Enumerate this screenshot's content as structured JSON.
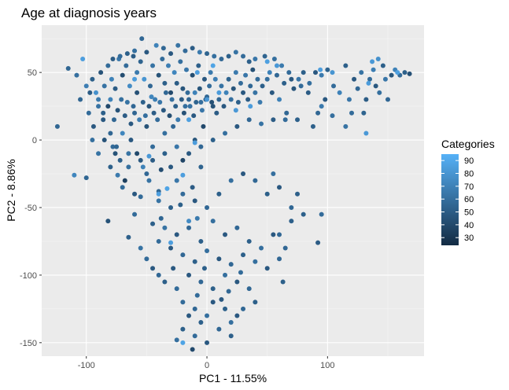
{
  "chart_data": {
    "type": "scatter",
    "title": "Age at diagnosis  years",
    "xlabel": "PC1 - 11.55%",
    "ylabel": "PC2 - 8.86%",
    "xlim": [
      -137,
      180
    ],
    "ylim": [
      -160,
      85
    ],
    "x_ticks": [
      -100,
      0,
      100
    ],
    "y_ticks": [
      -150,
      -100,
      -50,
      0,
      50
    ],
    "grid": true,
    "legend": {
      "title": "Categories",
      "position": "right",
      "ticks": [
        30,
        40,
        50,
        60,
        70,
        80,
        90
      ],
      "range": [
        24,
        95
      ],
      "color_low": "#132B43",
      "color_high": "#56B1F7"
    },
    "points": [
      [
        -124,
        10,
        55
      ],
      [
        -110,
        -26,
        72
      ],
      [
        -100,
        40,
        68
      ],
      [
        -103,
        60,
        85
      ],
      [
        -97,
        35,
        50
      ],
      [
        -90,
        25,
        62
      ],
      [
        -86,
        15,
        48
      ],
      [
        -80,
        5,
        55
      ],
      [
        -78,
        -5,
        58
      ],
      [
        -76,
        -10,
        45
      ],
      [
        -74,
        -26,
        66
      ],
      [
        -72,
        -15,
        52
      ],
      [
        -70,
        5,
        72
      ],
      [
        -68,
        -30,
        35
      ],
      [
        -65,
        -20,
        60
      ],
      [
        -63,
        0,
        48
      ],
      [
        -60,
        20,
        55
      ],
      [
        -58,
        -10,
        40
      ],
      [
        -55,
        -42,
        58
      ],
      [
        -53,
        -20,
        70
      ],
      [
        -50,
        10,
        45
      ],
      [
        -48,
        -30,
        62
      ],
      [
        -45,
        -15,
        50
      ],
      [
        -43,
        30,
        68
      ],
      [
        -40,
        -38,
        55
      ],
      [
        -38,
        -22,
        42
      ],
      [
        -35,
        5,
        60
      ],
      [
        -33,
        -36,
        88
      ],
      [
        -30,
        -20,
        48
      ],
      [
        -28,
        10,
        56
      ],
      [
        -25,
        -30,
        64
      ],
      [
        -22,
        -48,
        52
      ],
      [
        -20,
        -15,
        38
      ],
      [
        -18,
        25,
        60
      ],
      [
        -15,
        -60,
        75
      ],
      [
        -12,
        -35,
        50
      ],
      [
        -10,
        0,
        46
      ],
      [
        -8,
        -58,
        66
      ],
      [
        -5,
        -20,
        54
      ],
      [
        -3,
        10,
        40
      ],
      [
        -115,
        53,
        55
      ],
      [
        -108,
        48,
        60
      ],
      [
        -95,
        45,
        52
      ],
      [
        -92,
        35,
        78
      ],
      [
        -88,
        50,
        45
      ],
      [
        -85,
        40,
        62
      ],
      [
        -82,
        55,
        58
      ],
      [
        -79,
        45,
        70
      ],
      [
        -76,
        38,
        50
      ],
      [
        -73,
        60,
        65
      ],
      [
        -70,
        48,
        42
      ],
      [
        -67,
        55,
        58
      ],
      [
        -64,
        40,
        75
      ],
      [
        -61,
        62,
        50
      ],
      [
        -58,
        50,
        66
      ],
      [
        -55,
        58,
        54
      ],
      [
        -52,
        45,
        80
      ],
      [
        -50,
        65,
        48
      ],
      [
        -47,
        40,
        56
      ],
      [
        -45,
        55,
        62
      ],
      [
        -42,
        70,
        70
      ],
      [
        -40,
        48,
        45
      ],
      [
        -37,
        60,
        58
      ],
      [
        -35,
        42,
        52
      ],
      [
        -32,
        55,
        68
      ],
      [
        -30,
        35,
        40
      ],
      [
        -27,
        50,
        72
      ],
      [
        -25,
        42,
        50
      ],
      [
        -22,
        58,
        60
      ],
      [
        -20,
        38,
        46
      ],
      [
        -17,
        52,
        64
      ],
      [
        -15,
        30,
        56
      ],
      [
        -12,
        48,
        42
      ],
      [
        -10,
        35,
        70
      ],
      [
        -7,
        55,
        52
      ],
      [
        -5,
        28,
        60
      ],
      [
        -2,
        45,
        48
      ],
      [
        0,
        32,
        55
      ],
      [
        3,
        50,
        66
      ],
      [
        5,
        25,
        45
      ],
      [
        -98,
        20,
        58
      ],
      [
        -94,
        10,
        48
      ],
      [
        -90,
        30,
        66
      ],
      [
        -86,
        20,
        52
      ],
      [
        -82,
        25,
        40
      ],
      [
        -80,
        30,
        70
      ],
      [
        -77,
        15,
        55
      ],
      [
        -74,
        22,
        45
      ],
      [
        -71,
        30,
        60
      ],
      [
        -68,
        18,
        50
      ],
      [
        -66,
        28,
        62
      ],
      [
        -63,
        12,
        48
      ],
      [
        -61,
        25,
        56
      ],
      [
        -58,
        35,
        44
      ],
      [
        -56,
        15,
        68
      ],
      [
        -53,
        28,
        52
      ],
      [
        -51,
        18,
        60
      ],
      [
        -48,
        25,
        46
      ],
      [
        -46,
        32,
        72
      ],
      [
        -44,
        20,
        50
      ],
      [
        -41,
        15,
        58
      ],
      [
        -39,
        28,
        64
      ],
      [
        -36,
        22,
        48
      ],
      [
        -34,
        35,
        56
      ],
      [
        -31,
        18,
        42
      ],
      [
        -29,
        30,
        60
      ],
      [
        -26,
        25,
        52
      ],
      [
        -24,
        15,
        66
      ],
      [
        -21,
        30,
        50
      ],
      [
        -19,
        20,
        44
      ],
      [
        -16,
        35,
        58
      ],
      [
        -14,
        25,
        62
      ],
      [
        -11,
        18,
        48
      ],
      [
        -9,
        28,
        54
      ],
      [
        -6,
        38,
        46
      ],
      [
        -4,
        22,
        64
      ],
      [
        -1,
        30,
        52
      ],
      [
        2,
        40,
        58
      ],
      [
        4,
        28,
        44
      ],
      [
        7,
        45,
        68
      ],
      [
        8,
        20,
        50
      ],
      [
        10,
        30,
        56
      ],
      [
        12,
        40,
        62
      ],
      [
        14,
        25,
        48
      ],
      [
        16,
        35,
        70
      ],
      [
        18,
        45,
        54
      ],
      [
        20,
        30,
        60
      ],
      [
        22,
        38,
        46
      ],
      [
        24,
        50,
        66
      ],
      [
        26,
        28,
        52
      ],
      [
        28,
        42,
        58
      ],
      [
        30,
        35,
        48
      ],
      [
        32,
        48,
        64
      ],
      [
        34,
        30,
        50
      ],
      [
        36,
        40,
        56
      ],
      [
        38,
        52,
        44
      ],
      [
        40,
        35,
        62
      ],
      [
        42,
        45,
        58
      ],
      [
        44,
        28,
        66
      ],
      [
        46,
        40,
        52
      ],
      [
        50,
        45,
        60
      ],
      [
        54,
        35,
        48
      ],
      [
        58,
        48,
        56
      ],
      [
        60,
        30,
        70
      ],
      [
        64,
        42,
        52
      ],
      [
        68,
        50,
        58
      ],
      [
        72,
        38,
        46
      ],
      [
        76,
        45,
        64
      ],
      [
        80,
        50,
        52
      ],
      [
        85,
        42,
        60
      ],
      [
        90,
        50,
        48
      ],
      [
        95,
        48,
        66
      ],
      [
        100,
        52,
        54
      ],
      [
        105,
        40,
        58
      ],
      [
        110,
        35,
        70
      ],
      [
        115,
        55,
        52
      ],
      [
        118,
        30,
        64
      ],
      [
        122,
        45,
        48
      ],
      [
        125,
        38,
        56
      ],
      [
        128,
        50,
        62
      ],
      [
        132,
        30,
        50
      ],
      [
        135,
        45,
        58
      ],
      [
        138,
        52,
        68
      ],
      [
        140,
        40,
        48
      ],
      [
        143,
        35,
        60
      ],
      [
        146,
        55,
        52
      ],
      [
        148,
        45,
        64
      ],
      [
        150,
        30,
        56
      ],
      [
        153,
        48,
        46
      ],
      [
        156,
        52,
        70
      ],
      [
        160,
        48,
        58
      ],
      [
        164,
        50,
        52
      ],
      [
        168,
        49,
        44
      ],
      [
        137,
        58,
        82
      ],
      [
        142,
        60,
        78
      ],
      [
        130,
        20,
        54
      ],
      [
        120,
        20,
        58
      ],
      [
        115,
        10,
        62
      ],
      [
        98,
        30,
        48
      ],
      [
        92,
        20,
        56
      ],
      [
        88,
        10,
        52
      ],
      [
        95,
        25,
        66
      ],
      [
        104,
        18,
        60
      ],
      [
        84,
        35,
        50
      ],
      [
        78,
        40,
        58
      ],
      [
        70,
        45,
        48
      ],
      [
        66,
        20,
        56
      ],
      [
        62,
        55,
        66
      ],
      [
        56,
        60,
        60
      ],
      [
        52,
        50,
        70
      ],
      [
        48,
        62,
        54
      ],
      [
        40,
        60,
        64
      ],
      [
        35,
        58,
        52
      ],
      [
        30,
        62,
        58
      ],
      [
        24,
        65,
        62
      ],
      [
        18,
        62,
        52
      ],
      [
        12,
        60,
        56
      ],
      [
        6,
        62,
        60
      ],
      [
        0,
        64,
        54
      ],
      [
        -6,
        65,
        66
      ],
      [
        -12,
        68,
        50
      ],
      [
        -18,
        66,
        58
      ],
      [
        -24,
        70,
        62
      ],
      [
        -30,
        64,
        48
      ],
      [
        -36,
        68,
        56
      ],
      [
        -54,
        75,
        56
      ],
      [
        -60,
        66,
        60
      ],
      [
        -66,
        64,
        52
      ],
      [
        -72,
        62,
        58
      ],
      [
        -78,
        60,
        50
      ],
      [
        -105,
        30,
        55
      ],
      [
        -95,
        0,
        60
      ],
      [
        -85,
        0,
        45
      ],
      [
        -75,
        -5,
        55
      ],
      [
        -65,
        -10,
        62
      ],
      [
        -55,
        -15,
        48
      ],
      [
        -45,
        -5,
        58
      ],
      [
        -35,
        -10,
        52
      ],
      [
        -25,
        -5,
        64
      ],
      [
        -15,
        -10,
        48
      ],
      [
        -5,
        -5,
        56
      ],
      [
        5,
        0,
        52
      ],
      [
        15,
        5,
        60
      ],
      [
        25,
        10,
        48
      ],
      [
        35,
        15,
        56
      ],
      [
        45,
        12,
        62
      ],
      [
        55,
        15,
        50
      ],
      [
        65,
        15,
        58
      ],
      [
        75,
        15,
        52
      ],
      [
        -100,
        -28,
        55
      ],
      [
        -90,
        -10,
        62
      ],
      [
        -80,
        -20,
        52
      ],
      [
        -70,
        -35,
        58
      ],
      [
        -60,
        -40,
        48
      ],
      [
        -50,
        -25,
        56
      ],
      [
        -40,
        -45,
        62
      ],
      [
        -30,
        -50,
        52
      ],
      [
        -20,
        -40,
        58
      ],
      [
        -10,
        -45,
        48
      ],
      [
        0,
        -50,
        56
      ],
      [
        10,
        -40,
        52
      ],
      [
        20,
        -30,
        60
      ],
      [
        30,
        -25,
        48
      ],
      [
        40,
        -30,
        56
      ],
      [
        50,
        -40,
        52
      ],
      [
        55,
        -25,
        60
      ],
      [
        60,
        -35,
        48
      ],
      [
        70,
        -50,
        56
      ],
      [
        75,
        -40,
        52
      ],
      [
        -82,
        -60,
        45
      ],
      [
        -60,
        -55,
        58
      ],
      [
        -45,
        -62,
        52
      ],
      [
        -35,
        -65,
        62
      ],
      [
        -25,
        -70,
        48
      ],
      [
        -15,
        -65,
        56
      ],
      [
        -5,
        -75,
        52
      ],
      [
        5,
        -60,
        60
      ],
      [
        15,
        -70,
        48
      ],
      [
        25,
        -65,
        56
      ],
      [
        35,
        -75,
        52
      ],
      [
        45,
        -80,
        60
      ],
      [
        55,
        -70,
        48
      ],
      [
        65,
        -80,
        56
      ],
      [
        70,
        -60,
        52
      ],
      [
        -40,
        -75,
        58
      ],
      [
        -30,
        -80,
        48
      ],
      [
        -20,
        -85,
        56
      ],
      [
        -10,
        -90,
        52
      ],
      [
        0,
        -82,
        60
      ],
      [
        10,
        -88,
        48
      ],
      [
        20,
        -92,
        56
      ],
      [
        30,
        -85,
        52
      ],
      [
        40,
        -90,
        60
      ],
      [
        50,
        -95,
        48
      ],
      [
        60,
        -88,
        56
      ],
      [
        -55,
        -80,
        62
      ],
      [
        -65,
        -72,
        52
      ],
      [
        -50,
        -88,
        58
      ],
      [
        -45,
        -95,
        48
      ],
      [
        -40,
        -100,
        56
      ],
      [
        -35,
        -105,
        52
      ],
      [
        -25,
        -110,
        58
      ],
      [
        -15,
        -100,
        48
      ],
      [
        -5,
        -105,
        56
      ],
      [
        5,
        -110,
        52
      ],
      [
        15,
        -100,
        60
      ],
      [
        25,
        -105,
        48
      ],
      [
        35,
        -110,
        56
      ],
      [
        40,
        -120,
        52
      ],
      [
        -20,
        -120,
        58
      ],
      [
        -15,
        -130,
        48
      ],
      [
        -10,
        -125,
        56
      ],
      [
        -5,
        -135,
        52
      ],
      [
        0,
        -130,
        60
      ],
      [
        5,
        -120,
        48
      ],
      [
        10,
        -140,
        56
      ],
      [
        15,
        -125,
        52
      ],
      [
        20,
        -135,
        60
      ],
      [
        25,
        -130,
        48
      ],
      [
        30,
        -125,
        56
      ],
      [
        -20,
        -140,
        52
      ],
      [
        -10,
        -145,
        58
      ],
      [
        0,
        -150,
        48
      ],
      [
        -25,
        -148,
        60
      ],
      [
        -20,
        -150,
        88
      ],
      [
        20,
        -145,
        52
      ],
      [
        -12,
        -155,
        40
      ],
      [
        60,
        -70,
        56
      ],
      [
        80,
        -55,
        52
      ],
      [
        92,
        -76,
        50
      ],
      [
        95,
        -55,
        58
      ],
      [
        63,
        -105,
        52
      ],
      [
        -30,
        -76,
        85
      ],
      [
        -28,
        -95,
        48
      ],
      [
        -8,
        -115,
        58
      ],
      [
        -2,
        -95,
        52
      ],
      [
        12,
        -118,
        48
      ],
      [
        18,
        -112,
        56
      ],
      [
        28,
        -98,
        58
      ],
      [
        -38,
        -58,
        55
      ],
      [
        -40,
        -40,
        85
      ],
      [
        -48,
        -12,
        82
      ],
      [
        -20,
        -26,
        85
      ],
      [
        -15,
        15,
        86
      ],
      [
        -8,
        50,
        85
      ],
      [
        5,
        55,
        88
      ],
      [
        10,
        35,
        84
      ],
      [
        24,
        22,
        82
      ],
      [
        36,
        25,
        84
      ],
      [
        50,
        58,
        86
      ],
      [
        58,
        55,
        82
      ],
      [
        94,
        52,
        85
      ],
      [
        104,
        50,
        80
      ],
      [
        134,
        42,
        84
      ],
      [
        158,
        50,
        86
      ],
      [
        132,
        5,
        82
      ],
      [
        -10,
        -2,
        84
      ],
      [
        0,
        30,
        82
      ],
      [
        -60,
        45,
        84
      ]
    ]
  }
}
